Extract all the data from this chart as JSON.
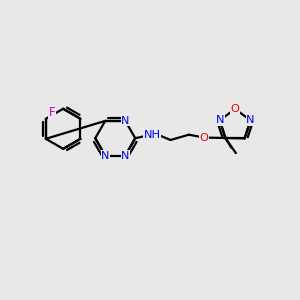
{
  "bg_color": "#e8e8e8",
  "bond_color": "#000000",
  "N_color": "#0000ee",
  "O_color": "#ee0000",
  "F_color": "#cc00cc",
  "linewidth": 1.6,
  "figsize": [
    3.0,
    3.0
  ],
  "dpi": 100,
  "xlim": [
    0,
    10
  ],
  "ylim": [
    0,
    10
  ]
}
